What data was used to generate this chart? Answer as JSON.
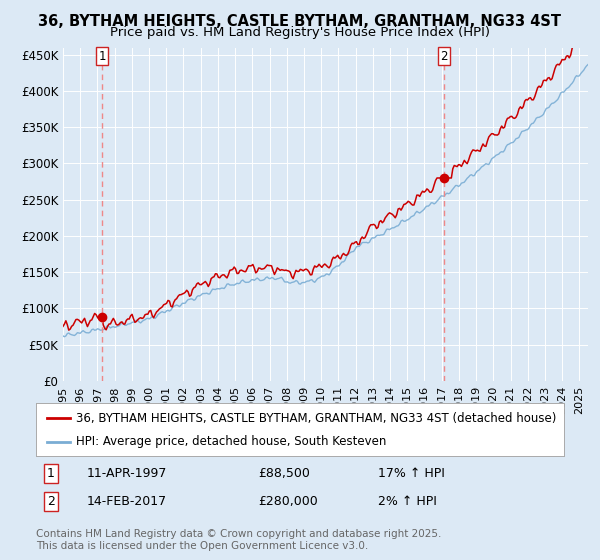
{
  "title1": "36, BYTHAM HEIGHTS, CASTLE BYTHAM, GRANTHAM, NG33 4ST",
  "title2": "Price paid vs. HM Land Registry's House Price Index (HPI)",
  "ylabel_ticks": [
    "£0",
    "£50K",
    "£100K",
    "£150K",
    "£200K",
    "£250K",
    "£300K",
    "£350K",
    "£400K",
    "£450K"
  ],
  "ytick_vals": [
    0,
    50000,
    100000,
    150000,
    200000,
    250000,
    300000,
    350000,
    400000,
    450000
  ],
  "ylim": [
    0,
    460000
  ],
  "xlim_start": 1995.0,
  "xlim_end": 2025.5,
  "marker1_x": 1997.27,
  "marker1_y": 88500,
  "marker2_x": 2017.12,
  "marker2_y": 280000,
  "vline1_x": 1997.27,
  "vline2_x": 2017.12,
  "legend_line1": "36, BYTHAM HEIGHTS, CASTLE BYTHAM, GRANTHAM, NG33 4ST (detached house)",
  "legend_line2": "HPI: Average price, detached house, South Kesteven",
  "ann1_date": "11-APR-1997",
  "ann1_price": "£88,500",
  "ann1_hpi": "17% ↑ HPI",
  "ann2_date": "14-FEB-2017",
  "ann2_price": "£280,000",
  "ann2_hpi": "2% ↑ HPI",
  "footer": "Contains HM Land Registry data © Crown copyright and database right 2025.\nThis data is licensed under the Open Government Licence v3.0.",
  "bg_color": "#dce9f5",
  "grid_color": "#ffffff",
  "red_line_color": "#cc0000",
  "blue_line_color": "#7aadd4",
  "vline_color": "#ee8888",
  "marker_color": "#cc0000",
  "title_fontsize": 10.5,
  "subtitle_fontsize": 9.5,
  "tick_fontsize": 8.5,
  "legend_fontsize": 8.5,
  "ann_fontsize": 9,
  "footer_fontsize": 7.5
}
